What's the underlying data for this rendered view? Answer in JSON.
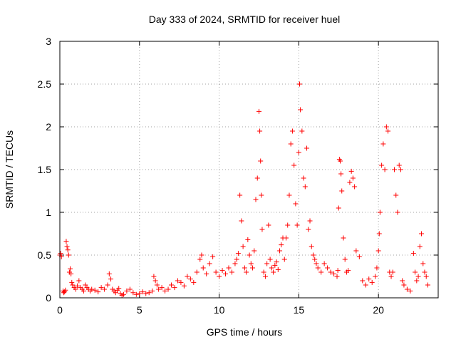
{
  "chart_data": {
    "type": "scatter",
    "title": "Day 333 of 2024, SRMTID for receiver huel",
    "xlabel": "GPS time / hours",
    "ylabel": "SRMTID / TECUs",
    "xlim": [
      0,
      23.75
    ],
    "ylim": [
      0,
      3
    ],
    "x_ticks": [
      0,
      5,
      10,
      15,
      20
    ],
    "x_tick_labels": [
      "0",
      "5",
      "10",
      "15",
      "20"
    ],
    "y_ticks": [
      0,
      0.5,
      1,
      1.5,
      2,
      2.5,
      3
    ],
    "y_tick_labels": [
      "0",
      "0.5",
      "1",
      "1.5",
      "2",
      "2.5",
      "3"
    ],
    "grid": true,
    "marker": "+",
    "marker_color": "#ff0000",
    "series": [
      {
        "name": "huel",
        "x": [
          0.0,
          0.05,
          0.1,
          0.2,
          0.25,
          0.3,
          0.35,
          0.4,
          0.45,
          0.5,
          0.55,
          0.6,
          0.65,
          0.7,
          0.75,
          0.8,
          0.9,
          1.0,
          1.1,
          1.2,
          1.3,
          1.4,
          1.5,
          1.6,
          1.7,
          1.8,
          1.9,
          2.0,
          2.2,
          2.4,
          2.6,
          2.8,
          3.0,
          3.1,
          3.2,
          3.3,
          3.4,
          3.5,
          3.6,
          3.7,
          3.8,
          3.9,
          4.0,
          4.2,
          4.4,
          4.6,
          4.8,
          5.0,
          5.2,
          5.4,
          5.6,
          5.8,
          5.9,
          6.0,
          6.1,
          6.2,
          6.4,
          6.6,
          6.8,
          7.0,
          7.2,
          7.4,
          7.6,
          7.8,
          8.0,
          8.2,
          8.4,
          8.6,
          8.8,
          8.9,
          9.0,
          9.2,
          9.4,
          9.6,
          9.8,
          10.0,
          10.2,
          10.4,
          10.6,
          10.8,
          11.0,
          11.1,
          11.2,
          11.3,
          11.4,
          11.5,
          11.6,
          11.7,
          11.8,
          11.9,
          12.0,
          12.1,
          12.2,
          12.3,
          12.4,
          12.5,
          12.55,
          12.6,
          12.65,
          12.7,
          12.8,
          12.9,
          13.0,
          13.1,
          13.2,
          13.3,
          13.4,
          13.5,
          13.6,
          13.7,
          13.8,
          13.9,
          14.0,
          14.1,
          14.2,
          14.3,
          14.4,
          14.5,
          14.6,
          14.7,
          14.8,
          14.9,
          15.0,
          15.05,
          15.1,
          15.2,
          15.3,
          15.4,
          15.5,
          15.6,
          15.7,
          15.8,
          15.9,
          16.0,
          16.1,
          16.2,
          16.4,
          16.6,
          16.8,
          17.0,
          17.2,
          17.4,
          17.45,
          17.5,
          17.55,
          17.6,
          17.65,
          17.7,
          17.8,
          17.9,
          18.0,
          18.1,
          18.2,
          18.3,
          18.4,
          18.5,
          18.6,
          18.8,
          19.0,
          19.2,
          19.4,
          19.6,
          19.8,
          19.9,
          20.0,
          20.05,
          20.1,
          20.2,
          20.3,
          20.4,
          20.5,
          20.6,
          20.7,
          20.8,
          20.9,
          21.0,
          21.1,
          21.2,
          21.3,
          21.4,
          21.5,
          21.6,
          21.8,
          22.0,
          22.2,
          22.3,
          22.4,
          22.5,
          22.6,
          22.7,
          22.8,
          22.9,
          23.0,
          23.1
        ],
        "y": [
          0.5,
          0.52,
          0.48,
          0.08,
          0.06,
          0.07,
          0.09,
          0.66,
          0.6,
          0.56,
          0.5,
          0.3,
          0.34,
          0.28,
          0.18,
          0.15,
          0.12,
          0.1,
          0.14,
          0.2,
          0.12,
          0.1,
          0.08,
          0.15,
          0.12,
          0.1,
          0.08,
          0.1,
          0.09,
          0.07,
          0.12,
          0.1,
          0.15,
          0.28,
          0.22,
          0.1,
          0.08,
          0.06,
          0.09,
          0.11,
          0.05,
          0.03,
          0.04,
          0.08,
          0.1,
          0.06,
          0.04,
          0.05,
          0.07,
          0.05,
          0.06,
          0.08,
          0.25,
          0.2,
          0.15,
          0.1,
          0.12,
          0.08,
          0.1,
          0.15,
          0.12,
          0.2,
          0.18,
          0.14,
          0.25,
          0.22,
          0.18,
          0.3,
          0.45,
          0.5,
          0.35,
          0.28,
          0.4,
          0.48,
          0.3,
          0.25,
          0.32,
          0.28,
          0.35,
          0.3,
          0.4,
          0.45,
          0.52,
          1.2,
          0.9,
          0.6,
          0.35,
          0.3,
          0.68,
          0.5,
          0.4,
          0.35,
          0.55,
          1.15,
          1.4,
          2.18,
          1.95,
          1.6,
          1.2,
          0.8,
          0.3,
          0.25,
          0.4,
          0.85,
          0.45,
          0.35,
          0.3,
          0.38,
          0.42,
          0.33,
          0.55,
          0.62,
          0.7,
          0.45,
          0.7,
          0.85,
          1.2,
          1.8,
          1.95,
          1.55,
          1.1,
          0.85,
          1.7,
          2.5,
          2.2,
          1.95,
          1.4,
          1.3,
          1.75,
          0.8,
          0.9,
          0.6,
          0.5,
          0.45,
          0.4,
          0.35,
          0.3,
          0.4,
          0.35,
          0.3,
          0.28,
          0.25,
          0.32,
          1.05,
          1.62,
          1.6,
          1.45,
          1.25,
          0.7,
          0.45,
          0.3,
          0.32,
          1.35,
          1.48,
          1.4,
          1.3,
          0.55,
          0.48,
          0.2,
          0.15,
          0.22,
          0.18,
          0.25,
          0.35,
          0.55,
          0.75,
          1.0,
          1.55,
          1.8,
          1.5,
          2.0,
          1.95,
          0.3,
          0.25,
          0.3,
          1.5,
          1.2,
          1.0,
          1.55,
          1.5,
          0.2,
          0.15,
          0.1,
          0.08,
          0.52,
          0.3,
          0.2,
          0.25,
          0.6,
          0.75,
          0.4,
          0.3,
          0.25,
          0.15
        ]
      }
    ]
  }
}
